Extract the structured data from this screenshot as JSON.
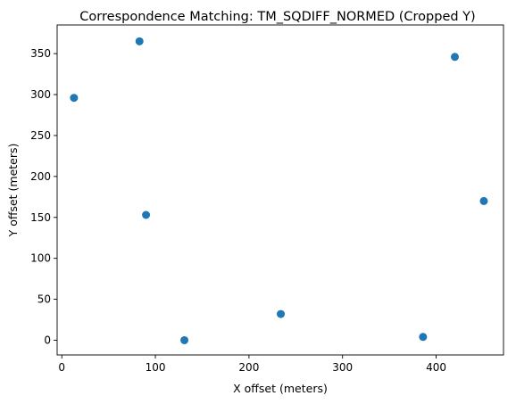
{
  "chart_data": {
    "type": "scatter",
    "title": "Correspondence Matching: TM_SQDIFF_NORMED (Cropped Y)",
    "xlabel": "X offset (meters)",
    "ylabel": "Y offset (meters)",
    "xlim": [
      -5,
      472
    ],
    "ylim": [
      -18,
      385
    ],
    "xticks": [
      0,
      100,
      200,
      300,
      400
    ],
    "yticks": [
      0,
      50,
      100,
      150,
      200,
      250,
      300,
      350
    ],
    "grid": false,
    "series": [
      {
        "color": "#1f77b4",
        "points": [
          {
            "x": 13,
            "y": 296
          },
          {
            "x": 83,
            "y": 365
          },
          {
            "x": 90,
            "y": 153
          },
          {
            "x": 131,
            "y": 0
          },
          {
            "x": 234,
            "y": 32
          },
          {
            "x": 386,
            "y": 4
          },
          {
            "x": 420,
            "y": 346
          },
          {
            "x": 451,
            "y": 170
          }
        ]
      }
    ]
  }
}
